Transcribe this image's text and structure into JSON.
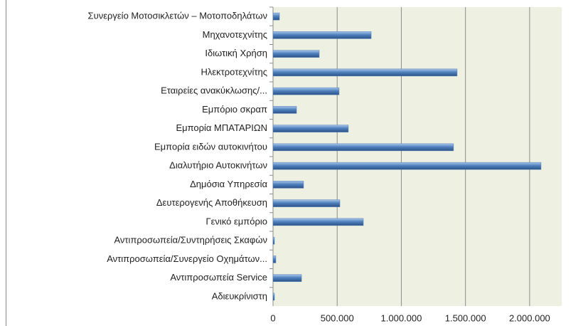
{
  "chart_data": {
    "type": "bar",
    "orientation": "horizontal",
    "categories": [
      "Συνεργείο Μοτοσικλετών – Μοτοποδηλάτων",
      "Μηχανοτεχνίτης",
      "Ιδιωτική Χρήση",
      "Ηλεκτροτεχνίτης",
      "Εταιρείες ανακύκλωσης/...",
      "Εμπόριο σκραπ",
      "Εμπορία ΜΠΑΤΑΡΙΩΝ",
      "Εμπορία ειδών αυτοκινήτου",
      "Διαλυτήριο Αυτοκινήτων",
      "Δημόσια Υπηρεσία",
      "Δευτερογενής Αποθήκευση",
      "Γενικό εμπόριο",
      "Αντιπροσωπεία/Συντηρήσεις Σκαφών",
      "Αντιπροσωπεία/Συνεργείο Οχημάτων...",
      "Αντιπροσωπεία Service",
      "Αδιευκρίνιστη"
    ],
    "values": [
      50000,
      765000,
      360000,
      1435000,
      515000,
      183000,
      587000,
      1407000,
      2089000,
      238000,
      521000,
      704000,
      11000,
      22000,
      222000,
      11000
    ],
    "color": "#4f81bd",
    "xlim": [
      0,
      2250000
    ],
    "xticks": [
      0,
      {
        "value": 500000,
        "label": "500.000"
      },
      {
        "value": 1000000,
        "label": "1.000.000"
      },
      {
        "value": 1500000,
        "label": "1.500.000"
      },
      {
        "value": 2000000,
        "label": "2.000.000"
      }
    ],
    "grid": true
  }
}
